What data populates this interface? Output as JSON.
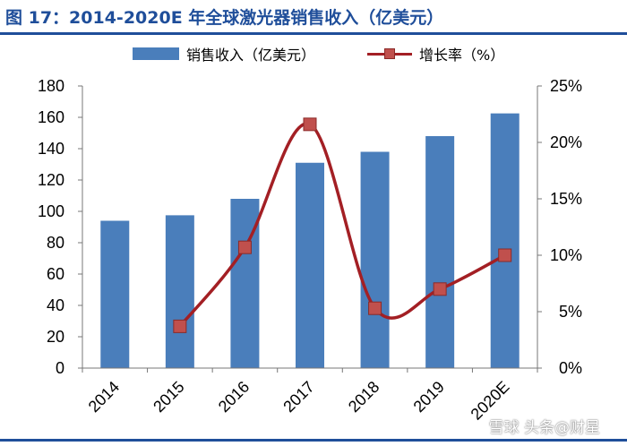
{
  "title": "图 17：2014-2020E 年全球激光器销售收入（亿美元）",
  "legend": {
    "bar_label": "销售收入（亿美元）",
    "line_label": "增长率（%）"
  },
  "watermark": "雪球 头条@财星",
  "colors": {
    "bar": "#4a7ebb",
    "line": "#a31f24",
    "marker": "#c0504d",
    "title": "#1f4e9a"
  },
  "chart_data": {
    "type": "bar",
    "categories": [
      "2014",
      "2015",
      "2016",
      "2017",
      "2018",
      "2019",
      "2020E"
    ],
    "series": [
      {
        "name": "销售收入（亿美元）",
        "type": "bar",
        "axis": "left",
        "values": [
          94,
          97.5,
          108,
          131,
          138,
          148,
          162.5
        ]
      },
      {
        "name": "增长率（%）",
        "type": "line",
        "axis": "right",
        "smooth": true,
        "values": [
          null,
          3.7,
          10.7,
          21.6,
          5.3,
          7.0,
          10.0
        ]
      }
    ],
    "y_left": {
      "lim": [
        0,
        180
      ],
      "ticks": [
        "0",
        "20",
        "40",
        "60",
        "80",
        "100",
        "120",
        "140",
        "160",
        "180"
      ]
    },
    "y_right": {
      "lim": [
        0,
        25
      ],
      "ticks": [
        "0%",
        "5%",
        "10%",
        "15%",
        "20%",
        "25%"
      ]
    },
    "grid": false,
    "legend_position": "top"
  }
}
